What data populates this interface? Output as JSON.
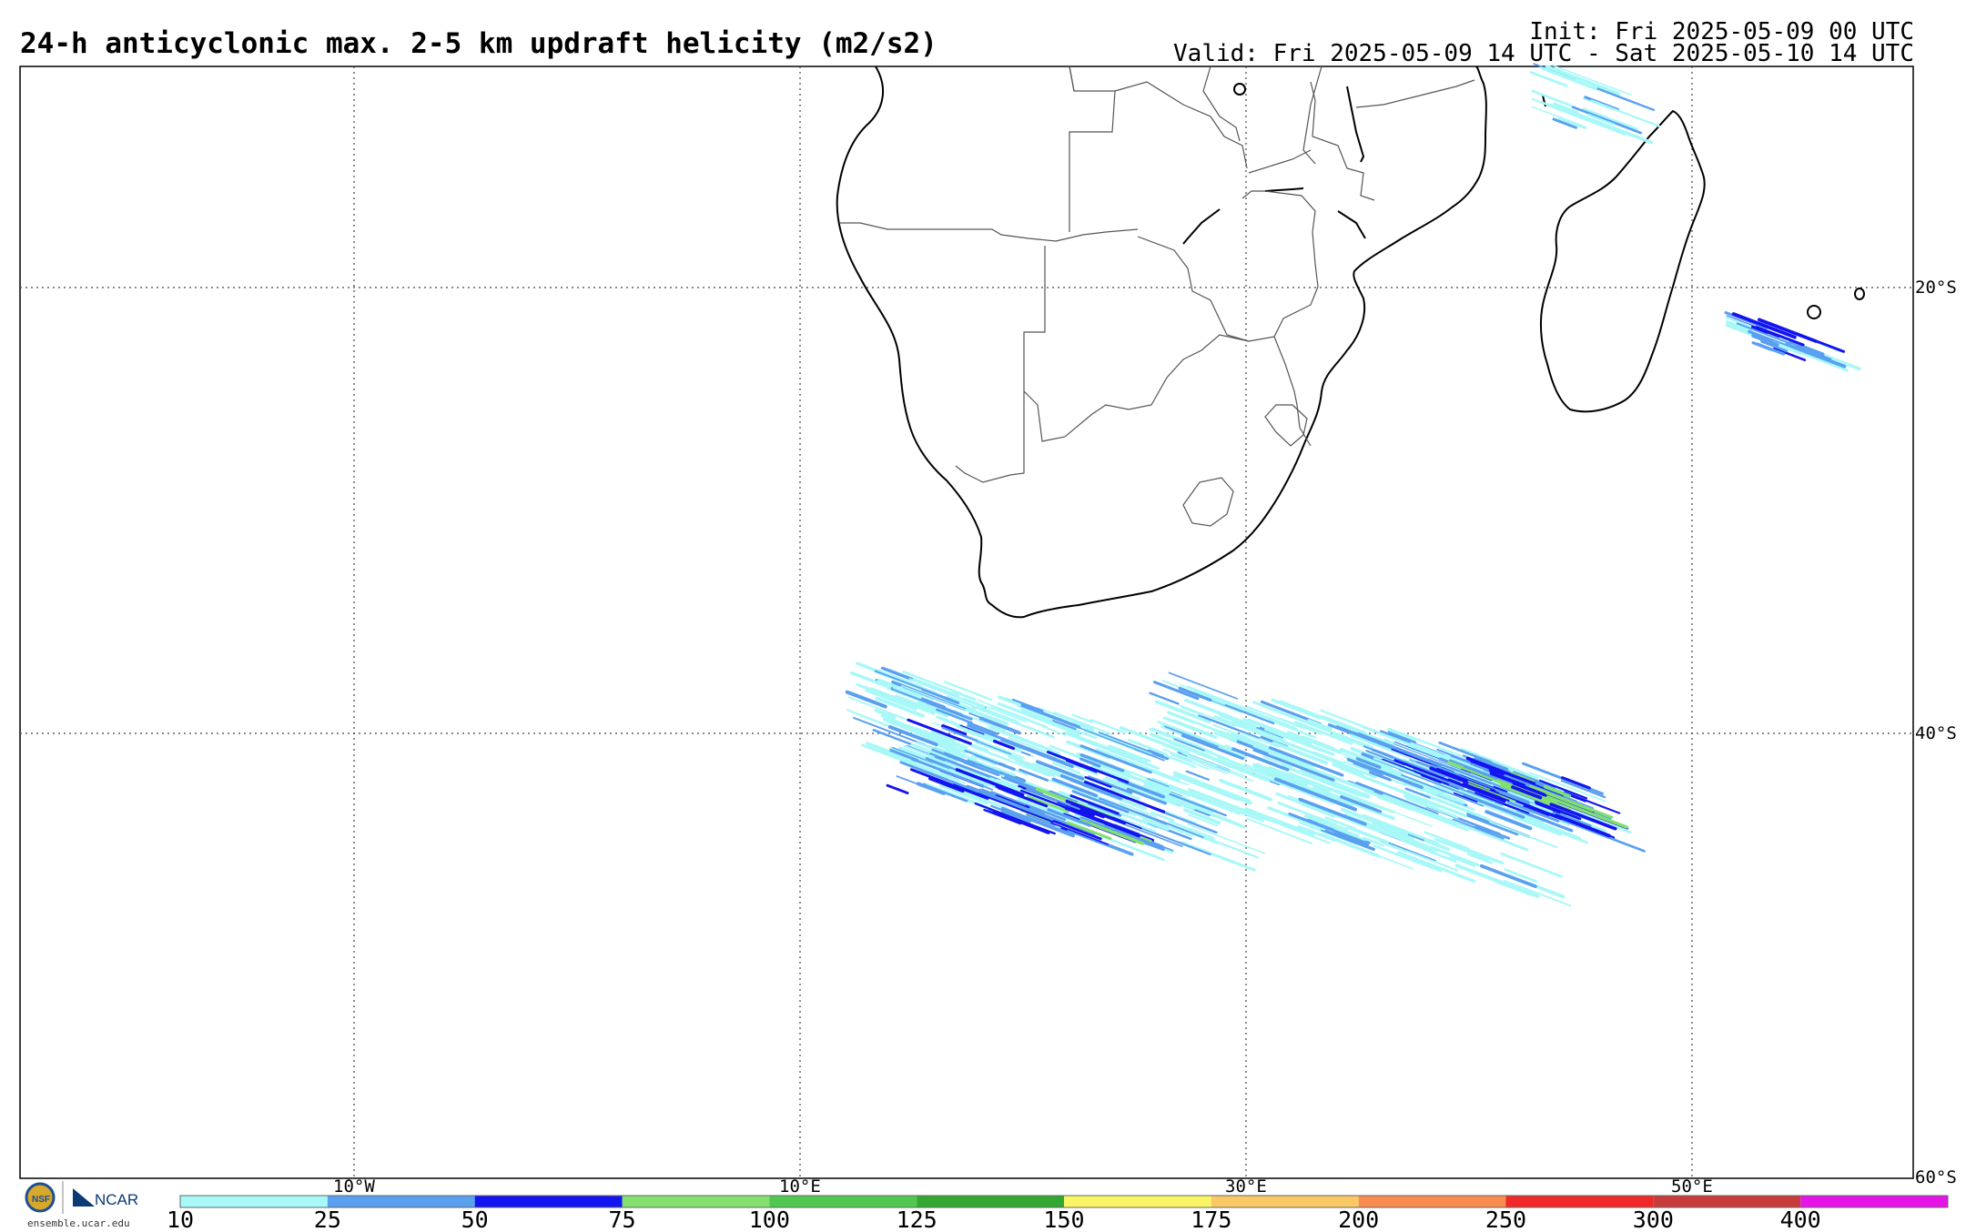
{
  "header": {
    "title": "24-h anticyclonic max. 2-5 km updraft helicity (m2/s2)",
    "init": "Init: Fri 2025-05-09 00 UTC",
    "valid": "Valid: Fri 2025-05-09 14 UTC - Sat 2025-05-10 14 UTC"
  },
  "map": {
    "lon_labels": [
      "10°W",
      "10°E",
      "30°E",
      "50°E"
    ],
    "lat_labels": [
      "20°S",
      "40°S",
      "60°S"
    ],
    "land_outline_color": "#000000",
    "border_color": "#555555",
    "gridline_style": "dotted"
  },
  "colorbar": {
    "levels": [
      "10",
      "25",
      "50",
      "75",
      "100",
      "125",
      "150",
      "175",
      "200",
      "250",
      "300",
      "400"
    ],
    "colors": [
      "#a8f8f8",
      "#5aa0f0",
      "#1414f0",
      "#82e06e",
      "#50c850",
      "#32a832",
      "#faf564",
      "#fac864",
      "#fa8c50",
      "#f02828",
      "#c83c3c",
      "#e614e6"
    ]
  },
  "footer": {
    "logo_text": "NCAR",
    "url": "ensemble.ucar.edu"
  }
}
